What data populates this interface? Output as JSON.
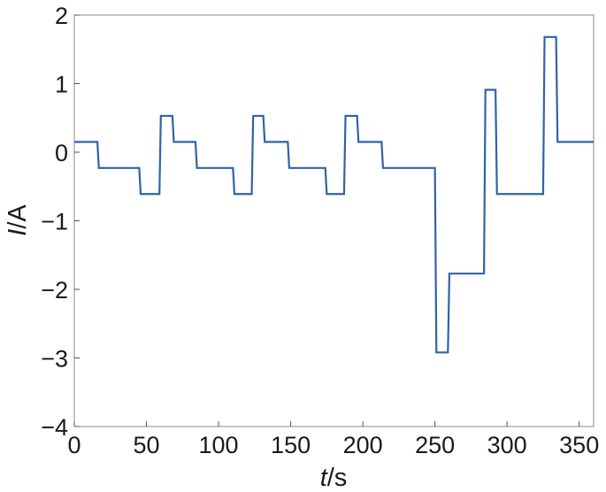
{
  "chart_data": {
    "type": "line",
    "title": "",
    "xlabel_italic": "t",
    "xlabel_unit": "/s",
    "ylabel_italic": "I",
    "ylabel_unit": "/A",
    "xlim": [
      0,
      360
    ],
    "ylim": [
      -4,
      2
    ],
    "grid": false,
    "legend": "none",
    "x_ticks": [
      0,
      50,
      100,
      150,
      200,
      250,
      300,
      350
    ],
    "x_tick_labels": [
      "0",
      "50",
      "100",
      "150",
      "200",
      "250",
      "300",
      "350"
    ],
    "y_ticks": [
      2,
      1,
      0,
      -1,
      -2,
      -3,
      -4
    ],
    "y_tick_labels": [
      "2",
      "1",
      "0",
      "−1",
      "−2",
      "−3",
      "−4"
    ],
    "series": [
      {
        "color": "#2f63a8",
        "x": [
          0,
          16,
          17,
          45,
          46,
          59,
          60,
          68,
          69,
          84,
          85,
          110,
          111,
          123,
          124,
          131,
          132,
          148,
          149,
          174,
          175,
          187,
          188,
          196,
          197,
          213,
          214,
          250,
          251,
          259,
          260,
          284,
          285,
          292,
          293,
          325,
          326,
          334,
          335,
          360
        ],
        "y": [
          0.15,
          0.15,
          -0.23,
          -0.23,
          -0.61,
          -0.61,
          0.53,
          0.53,
          0.15,
          0.15,
          -0.23,
          -0.23,
          -0.61,
          -0.61,
          0.53,
          0.53,
          0.15,
          0.15,
          -0.23,
          -0.23,
          -0.61,
          -0.61,
          0.53,
          0.53,
          0.15,
          0.15,
          -0.23,
          -0.23,
          -2.92,
          -2.92,
          -1.77,
          -1.77,
          0.91,
          0.91,
          -0.61,
          -0.61,
          1.68,
          1.68,
          0.15,
          0.15
        ]
      }
    ]
  }
}
